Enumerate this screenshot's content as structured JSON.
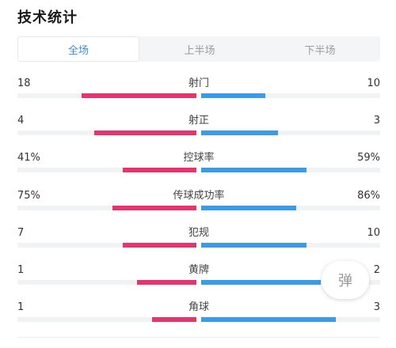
{
  "header": {
    "title": "技术统计"
  },
  "tabs": [
    {
      "label": "全场",
      "active": true
    },
    {
      "label": "上半场",
      "active": false
    },
    {
      "label": "下半场",
      "active": false
    }
  ],
  "colors": {
    "home": "#e8336e",
    "away": "#3a9be8",
    "track": "#f1f2f4",
    "tab_active": "#3a8ee6"
  },
  "stats": [
    {
      "label": "射门",
      "left": "18",
      "right": "10",
      "left_ratio": 0.64,
      "right_ratio": 0.36
    },
    {
      "label": "射正",
      "left": "4",
      "right": "3",
      "left_ratio": 0.57,
      "right_ratio": 0.43
    },
    {
      "label": "控球率",
      "left": "41%",
      "right": "59%",
      "left_ratio": 0.41,
      "right_ratio": 0.59
    },
    {
      "label": "传球成功率",
      "left": "75%",
      "right": "86%",
      "left_ratio": 0.47,
      "right_ratio": 0.53
    },
    {
      "label": "犯规",
      "left": "7",
      "right": "10",
      "left_ratio": 0.41,
      "right_ratio": 0.59
    },
    {
      "label": "黄牌",
      "left": "1",
      "right": "2",
      "left_ratio": 0.33,
      "right_ratio": 0.67
    },
    {
      "label": "角球",
      "left": "1",
      "right": "3",
      "left_ratio": 0.25,
      "right_ratio": 0.75
    }
  ],
  "danmu": {
    "label": "弹"
  }
}
